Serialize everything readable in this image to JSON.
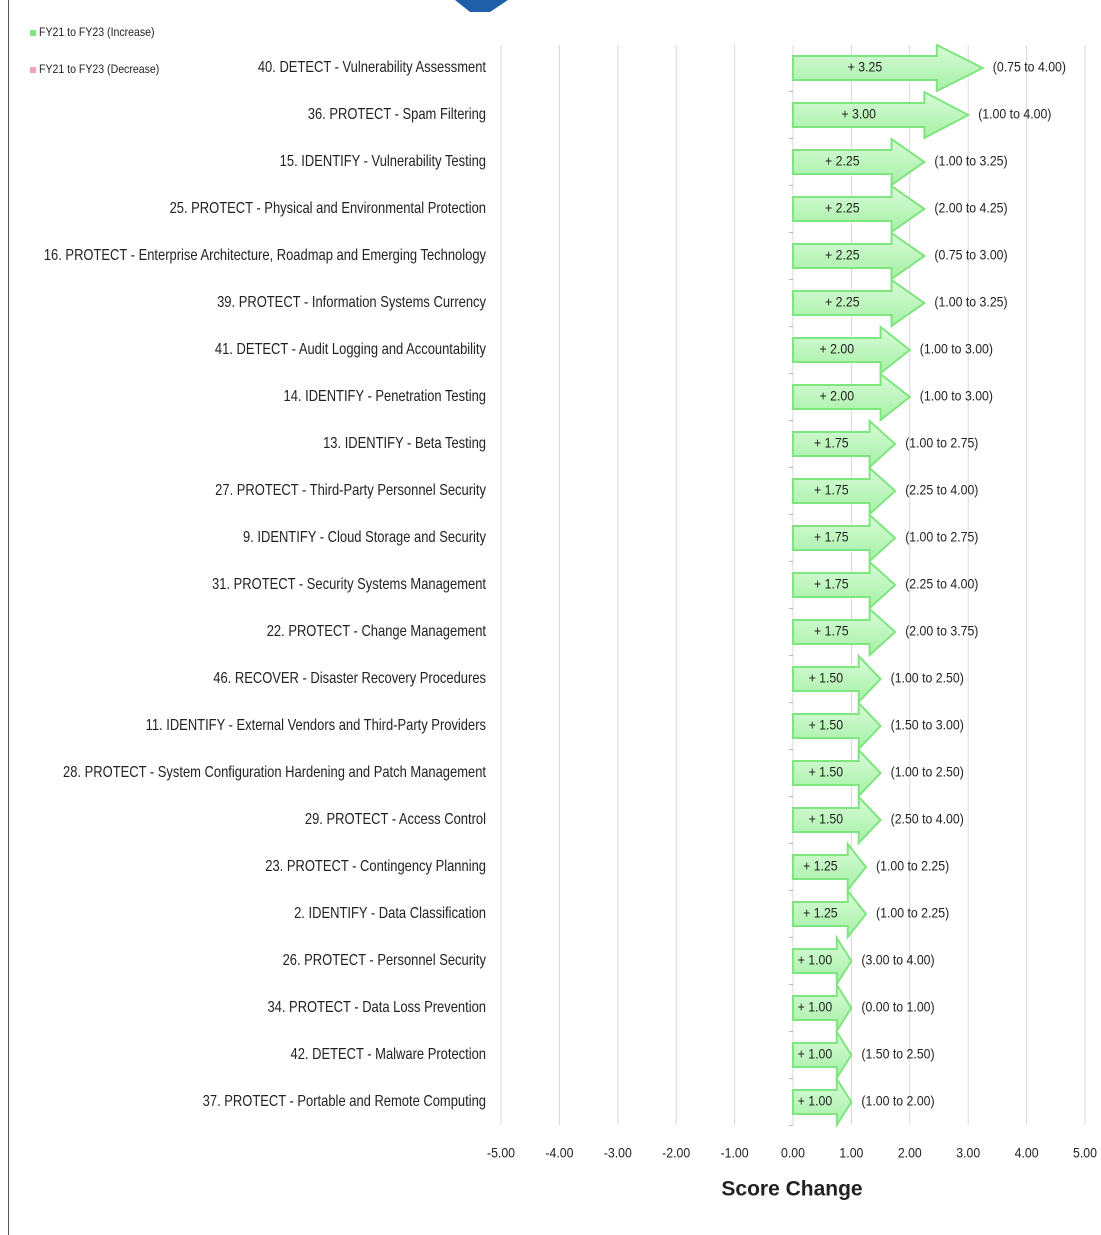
{
  "chart_data": {
    "type": "arrow-bar",
    "xlabel": "Score Change",
    "categories": [
      "40. DETECT - Vulnerability Assessment",
      "36. PROTECT - Spam Filtering",
      "15. IDENTIFY - Vulnerability Testing",
      "25. PROTECT - Physical and Environmental Protection",
      "16. PROTECT - Enterprise Architecture, Roadmap and Emerging Technology",
      "39. PROTECT - Information Systems Currency",
      "41. DETECT - Audit Logging and Accountability",
      "14. IDENTIFY - Penetration Testing",
      "13. IDENTIFY - Beta Testing",
      "27. PROTECT - Third-Party Personnel Security",
      "9. IDENTIFY - Cloud Storage and Security",
      "31. PROTECT - Security Systems Management",
      "22. PROTECT - Change Management",
      "46. RECOVER - Disaster Recovery Procedures",
      "11. IDENTIFY - External Vendors and Third-Party Providers",
      "28. PROTECT - System Configuration Hardening and Patch Management",
      "29. PROTECT - Access Control",
      "23. PROTECT - Contingency Planning",
      "2. IDENTIFY - Data Classification",
      "26. PROTECT - Personnel Security",
      "34. PROTECT - Data Loss Prevention",
      "42. DETECT - Malware Protection",
      "37. PROTECT - Portable and Remote Computing"
    ],
    "series": [
      {
        "name": "FY21 to FY23 (Increase)",
        "color": "#7fe57f",
        "values": [
          3.25,
          3.0,
          2.25,
          2.25,
          2.25,
          2.25,
          2.0,
          2.0,
          1.75,
          1.75,
          1.75,
          1.75,
          1.75,
          1.5,
          1.5,
          1.5,
          1.5,
          1.25,
          1.25,
          1.0,
          1.0,
          1.0,
          1.0
        ],
        "value_labels": [
          "+ 3.25",
          "+ 3.00",
          "+ 2.25",
          "+ 2.25",
          "+ 2.25",
          "+ 2.25",
          "+ 2.00",
          "+ 2.00",
          "+ 1.75",
          "+ 1.75",
          "+ 1.75",
          "+ 1.75",
          "+ 1.75",
          "+ 1.50",
          "+ 1.50",
          "+ 1.50",
          "+ 1.50",
          "+ 1.25",
          "+ 1.25",
          "+ 1.00",
          "+ 1.00",
          "+ 1.00",
          "+ 1.00"
        ],
        "ranges": [
          "(0.75 to 4.00)",
          "(1.00 to 4.00)",
          "(1.00 to 3.25)",
          "(2.00 to 4.25)",
          "(0.75 to 3.00)",
          "(1.00 to 3.25)",
          "(1.00 to 3.00)",
          "(1.00 to 3.00)",
          "(1.00 to 2.75)",
          "(2.25 to 4.00)",
          "(1.00 to 2.75)",
          "(2.25 to 4.00)",
          "(2.00 to 3.75)",
          "(1.00 to 2.50)",
          "(1.50 to 3.00)",
          "(1.00 to 2.50)",
          "(2.50 to 4.00)",
          "(1.00 to 2.25)",
          "(1.00 to 2.25)",
          "(3.00 to 4.00)",
          "(0.00 to 1.00)",
          "(1.50 to 2.50)",
          "(1.00 to 2.00)"
        ]
      },
      {
        "name": "FY21 to FY23 (Decrease)",
        "color": "#f4a3b4",
        "values": [
          null,
          null,
          null,
          null,
          null,
          null,
          null,
          null,
          null,
          null,
          null,
          null,
          null,
          null,
          null,
          null,
          null,
          null,
          null,
          null,
          null,
          null,
          null
        ]
      }
    ],
    "xlim": [
      -5,
      5
    ],
    "xticks": [
      {
        "value": -5,
        "label": "-5.00"
      },
      {
        "value": -4,
        "label": "-4.00"
      },
      {
        "value": -3,
        "label": "-3.00"
      },
      {
        "value": -2,
        "label": "-2.00"
      },
      {
        "value": -1,
        "label": "-1.00"
      },
      {
        "value": 0,
        "label": "0.00"
      },
      {
        "value": 1,
        "label": "1.00"
      },
      {
        "value": 2,
        "label": "2.00"
      },
      {
        "value": 3,
        "label": "3.00"
      },
      {
        "value": 4,
        "label": "4.00"
      },
      {
        "value": 5,
        "label": "5.00"
      }
    ],
    "grid": true
  }
}
